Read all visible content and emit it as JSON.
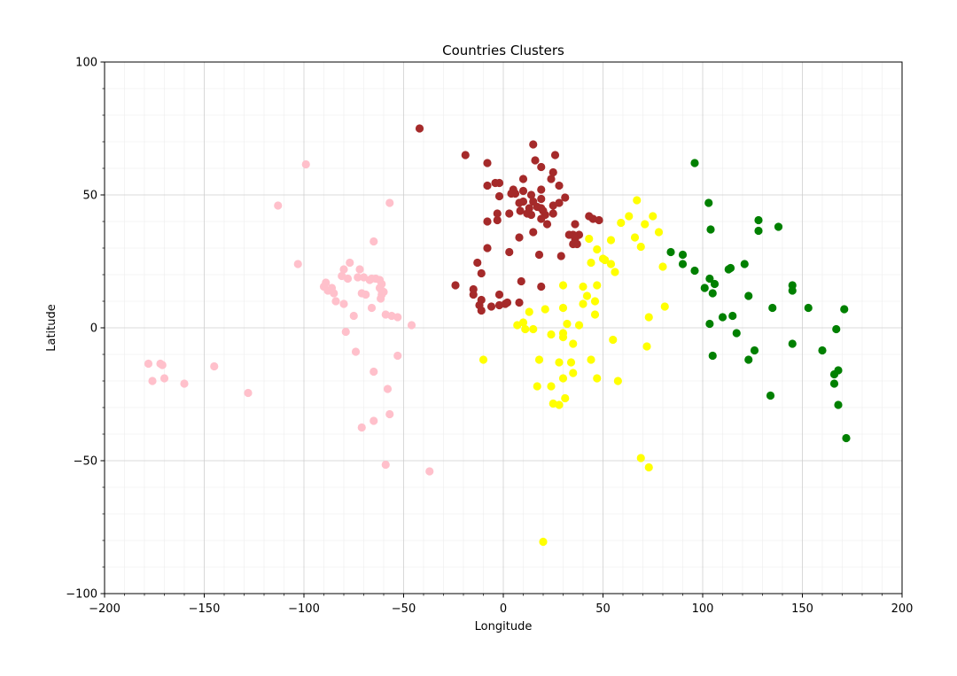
{
  "chart_data": {
    "type": "scatter",
    "title": "Countries Clusters",
    "xlabel": "Longitude",
    "ylabel": "Latitude",
    "xlim": [
      -200,
      200
    ],
    "ylim": [
      -100,
      100
    ],
    "xticks": [
      -200,
      -150,
      -100,
      -50,
      0,
      50,
      100,
      150,
      200
    ],
    "yticks": [
      -100,
      -50,
      0,
      50,
      100
    ],
    "xtick_labels": [
      "−200",
      "−150",
      "−100",
      "−50",
      "0",
      "50",
      "100",
      "150",
      "200"
    ],
    "ytick_labels": [
      "−100",
      "−50",
      "0",
      "50",
      "100"
    ],
    "grid": true,
    "minor_grid": true,
    "series": [
      {
        "color": "#ffc0cb",
        "points": [
          [
            -99,
            61.5
          ],
          [
            -113,
            46
          ],
          [
            -57,
            47
          ],
          [
            -103,
            24
          ],
          [
            -65,
            32.5
          ],
          [
            -80,
            22
          ],
          [
            -77,
            24.5
          ],
          [
            -72,
            22
          ],
          [
            -81,
            19.5
          ],
          [
            -78,
            18.5
          ],
          [
            -73,
            19
          ],
          [
            -70,
            19
          ],
          [
            -66,
            18.5
          ],
          [
            -64,
            18.5
          ],
          [
            -62,
            18
          ],
          [
            -61,
            16.5
          ],
          [
            -62,
            15
          ],
          [
            -61,
            14
          ],
          [
            -60,
            13.5
          ],
          [
            -61,
            12.5
          ],
          [
            -61.5,
            11
          ],
          [
            -67,
            18
          ],
          [
            -89,
            17
          ],
          [
            -90,
            15.5
          ],
          [
            -88,
            14
          ],
          [
            -86,
            15
          ],
          [
            -85,
            13
          ],
          [
            -84,
            10
          ],
          [
            -80,
            9
          ],
          [
            -71,
            13
          ],
          [
            -69,
            12.5
          ],
          [
            -75,
            4.5
          ],
          [
            -66,
            7.5
          ],
          [
            -59,
            5
          ],
          [
            -56,
            4.5
          ],
          [
            -53,
            4
          ],
          [
            -46,
            1
          ],
          [
            -79,
            -1.5
          ],
          [
            -74,
            -9
          ],
          [
            -53,
            -10.5
          ],
          [
            -65,
            -16.5
          ],
          [
            -58,
            -23
          ],
          [
            -57,
            -32.5
          ],
          [
            -65,
            -35
          ],
          [
            -71,
            -37.5
          ],
          [
            -59,
            -51.5
          ],
          [
            -37,
            -54
          ],
          [
            -178,
            -13.5
          ],
          [
            -172,
            -13.5
          ],
          [
            -171,
            -14
          ],
          [
            -176,
            -20
          ],
          [
            -170,
            -19
          ],
          [
            -160,
            -21
          ],
          [
            -145,
            -14.5
          ],
          [
            -128,
            -24.5
          ]
        ]
      },
      {
        "color": "#a52a2a",
        "points": [
          [
            -42,
            75
          ],
          [
            -19,
            65
          ],
          [
            -8,
            62
          ],
          [
            15,
            69
          ],
          [
            16,
            63
          ],
          [
            19,
            60.5
          ],
          [
            26,
            65
          ],
          [
            25,
            58.5
          ],
          [
            24,
            56
          ],
          [
            10,
            56
          ],
          [
            -4,
            54.5
          ],
          [
            -2,
            54.5
          ],
          [
            -8,
            53.5
          ],
          [
            5,
            52
          ],
          [
            6,
            50.5
          ],
          [
            10,
            51.5
          ],
          [
            4,
            50.5
          ],
          [
            -2,
            49.5
          ],
          [
            14,
            50
          ],
          [
            19,
            52
          ],
          [
            28,
            53.5
          ],
          [
            31,
            49
          ],
          [
            19,
            48.5
          ],
          [
            15,
            47.5
          ],
          [
            8,
            47
          ],
          [
            10,
            47.5
          ],
          [
            17,
            45.5
          ],
          [
            19,
            45
          ],
          [
            20,
            44
          ],
          [
            21,
            42.5
          ],
          [
            19,
            41
          ],
          [
            14,
            42.5
          ],
          [
            12,
            43
          ],
          [
            3,
            43
          ],
          [
            -3,
            43
          ],
          [
            -8,
            40
          ],
          [
            -3,
            40.5
          ],
          [
            22,
            39
          ],
          [
            25,
            43
          ],
          [
            25,
            46
          ],
          [
            28,
            47
          ],
          [
            15,
            36
          ],
          [
            8,
            34
          ],
          [
            3,
            28.5
          ],
          [
            -8,
            30
          ],
          [
            -13,
            24.5
          ],
          [
            -11,
            20.5
          ],
          [
            18,
            27.5
          ],
          [
            29,
            27
          ],
          [
            19,
            15.5
          ],
          [
            9,
            17.5
          ],
          [
            -2,
            12.5
          ],
          [
            -15,
            14.5
          ],
          [
            -15,
            12.5
          ],
          [
            -11,
            10.5
          ],
          [
            -12,
            8.5
          ],
          [
            -11,
            6.5
          ],
          [
            -6,
            8
          ],
          [
            -2,
            8.5
          ],
          [
            1,
            9
          ],
          [
            2,
            9.5
          ],
          [
            8,
            9.5
          ],
          [
            -24,
            16
          ],
          [
            36,
            39
          ],
          [
            43,
            42
          ],
          [
            45,
            41
          ],
          [
            48,
            40.5
          ],
          [
            35,
            35
          ],
          [
            33,
            35
          ],
          [
            38,
            35
          ],
          [
            36,
            33.5
          ],
          [
            35,
            31.5
          ],
          [
            37,
            31.5
          ],
          [
            8.5,
            44
          ],
          [
            13,
            45
          ]
        ]
      },
      {
        "color": "#ffff00",
        "points": [
          [
            67,
            48
          ],
          [
            63,
            42
          ],
          [
            75,
            42
          ],
          [
            59,
            39.5
          ],
          [
            71,
            39
          ],
          [
            66,
            34
          ],
          [
            54,
            33
          ],
          [
            69,
            30.5
          ],
          [
            47,
            29.5
          ],
          [
            50,
            26
          ],
          [
            51,
            25.5
          ],
          [
            54,
            24
          ],
          [
            44,
            24.5
          ],
          [
            56,
            21
          ],
          [
            78,
            36
          ],
          [
            80,
            23
          ],
          [
            81,
            8
          ],
          [
            73,
            4
          ],
          [
            72,
            -7
          ],
          [
            43,
            33.5
          ],
          [
            40,
            15.5
          ],
          [
            47,
            16
          ],
          [
            30,
            16
          ],
          [
            40,
            9
          ],
          [
            42,
            12
          ],
          [
            46,
            10
          ],
          [
            46,
            5
          ],
          [
            38,
            1
          ],
          [
            32,
            1.5
          ],
          [
            30,
            7.5
          ],
          [
            21,
            7
          ],
          [
            13,
            6
          ],
          [
            7,
            1
          ],
          [
            10,
            2
          ],
          [
            11,
            -0.5
          ],
          [
            15,
            -0.5
          ],
          [
            24,
            -2.5
          ],
          [
            30,
            -2
          ],
          [
            30,
            -3.5
          ],
          [
            35,
            -6
          ],
          [
            55,
            -4.5
          ],
          [
            -10,
            -12
          ],
          [
            18,
            -12
          ],
          [
            28,
            -13
          ],
          [
            34,
            -13
          ],
          [
            35,
            -17
          ],
          [
            44,
            -12
          ],
          [
            47,
            -19
          ],
          [
            57.5,
            -20
          ],
          [
            30,
            -19
          ],
          [
            17,
            -22
          ],
          [
            24,
            -22
          ],
          [
            25,
            -28.5
          ],
          [
            28,
            -29
          ],
          [
            31,
            -26.5
          ],
          [
            69,
            -49
          ],
          [
            73,
            -52.5
          ],
          [
            20,
            -80.5
          ]
        ]
      },
      {
        "color": "#008000",
        "points": [
          [
            96,
            62
          ],
          [
            103,
            47
          ],
          [
            104,
            37
          ],
          [
            84,
            28.5
          ],
          [
            90,
            27.5
          ],
          [
            90,
            24
          ],
          [
            96,
            21.5
          ],
          [
            114,
            22.5
          ],
          [
            113,
            22
          ],
          [
            121,
            24
          ],
          [
            128,
            40.5
          ],
          [
            128,
            36.5
          ],
          [
            138,
            38
          ],
          [
            101,
            15
          ],
          [
            103.5,
            18.5
          ],
          [
            106,
            16.5
          ],
          [
            105,
            13
          ],
          [
            110,
            4
          ],
          [
            115,
            4.5
          ],
          [
            103.5,
            1.5
          ],
          [
            123,
            12
          ],
          [
            135,
            7.5
          ],
          [
            145,
            14
          ],
          [
            145,
            16
          ],
          [
            153,
            7.5
          ],
          [
            171,
            7
          ],
          [
            167,
            -0.5
          ],
          [
            117,
            -2
          ],
          [
            105,
            -10.5
          ],
          [
            126,
            -8.5
          ],
          [
            123,
            -12
          ],
          [
            145,
            -6
          ],
          [
            160,
            -8.5
          ],
          [
            166,
            -17.5
          ],
          [
            166,
            -21
          ],
          [
            168,
            -16
          ],
          [
            168,
            -29
          ],
          [
            134,
            -25.5
          ],
          [
            172,
            -41.5
          ]
        ]
      }
    ]
  }
}
